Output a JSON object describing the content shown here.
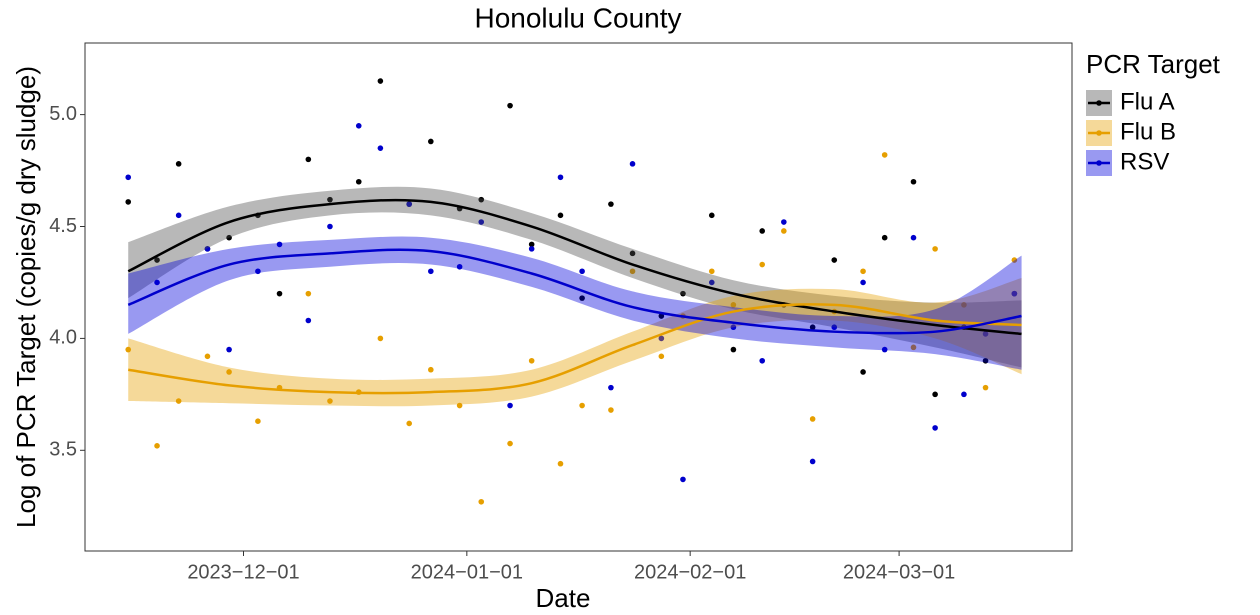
{
  "chart_data": {
    "type": "scatter",
    "title": "Honolulu County",
    "x_label": "Date",
    "y_label": "Log of PCR Target (copies/g dry sludge)",
    "legend_title": "PCR Target",
    "legend_position": "right",
    "grid": false,
    "xlim": [
      "2023-11-09",
      "2024-03-25"
    ],
    "xticks": [
      {
        "value": "2023-12-01",
        "label": "2023−12−01"
      },
      {
        "value": "2024-01-01",
        "label": "2024−01−01"
      },
      {
        "value": "2024-02-01",
        "label": "2024−02−01"
      },
      {
        "value": "2024-03-01",
        "label": "2024−03−01"
      }
    ],
    "ylim": [
      3.05,
      5.32
    ],
    "yticks": [
      3.5,
      {
        "value": 4,
        "label": "4.0"
      },
      4.5,
      {
        "value": 5,
        "label": "5.0"
      }
    ],
    "x": [
      "2023-11-15",
      "2023-11-19",
      "2023-11-22",
      "2023-11-26",
      "2023-11-29",
      "2023-12-03",
      "2023-12-06",
      "2023-12-10",
      "2023-12-13",
      "2023-12-17",
      "2023-12-20",
      "2023-12-24",
      "2023-12-27",
      "2023-12-31",
      "2024-01-03",
      "2024-01-07",
      "2024-01-10",
      "2024-01-14",
      "2024-01-17",
      "2024-01-21",
      "2024-01-24",
      "2024-01-28",
      "2024-01-31",
      "2024-02-04",
      "2024-02-07",
      "2024-02-11",
      "2024-02-14",
      "2024-02-18",
      "2024-02-21",
      "2024-02-25",
      "2024-02-28",
      "2024-03-03",
      "2024-03-06",
      "2024-03-10",
      "2024-03-13",
      "2024-03-17"
    ],
    "series": [
      {
        "name": "Flu A",
        "color": "#000000",
        "band_color": "#4d4d4d",
        "values": [
          4.61,
          4.35,
          4.78,
          4.4,
          4.45,
          4.55,
          4.2,
          4.8,
          4.62,
          4.7,
          5.15,
          4.6,
          4.88,
          4.58,
          4.62,
          5.04,
          4.42,
          4.55,
          4.18,
          4.6,
          4.38,
          4.1,
          4.2,
          4.55,
          3.95,
          4.48,
          4.15,
          4.05,
          4.35,
          3.85,
          4.45,
          4.7,
          3.75,
          4.05,
          3.9,
          4.2
        ],
        "smooth": {
          "x": [
            "2023-11-15",
            "2023-11-29",
            "2023-12-13",
            "2023-12-27",
            "2024-01-10",
            "2024-01-24",
            "2024-02-07",
            "2024-02-21",
            "2024-03-06",
            "2024-03-18"
          ],
          "fit": [
            4.3,
            4.52,
            4.6,
            4.61,
            4.5,
            4.33,
            4.2,
            4.12,
            4.06,
            4.02
          ],
          "lower": [
            4.18,
            4.45,
            4.55,
            4.55,
            4.44,
            4.27,
            4.13,
            4.05,
            3.96,
            3.87
          ],
          "upper": [
            4.43,
            4.59,
            4.66,
            4.67,
            4.56,
            4.4,
            4.26,
            4.19,
            4.16,
            4.17
          ]
        }
      },
      {
        "name": "Flu B",
        "color": "#e69f00",
        "band_color": "#e69f00",
        "values": [
          3.95,
          3.52,
          3.72,
          3.92,
          3.85,
          3.63,
          3.78,
          4.2,
          3.72,
          3.76,
          4.0,
          3.62,
          3.86,
          3.7,
          3.27,
          3.53,
          3.9,
          3.44,
          3.7,
          3.68,
          4.3,
          3.92,
          4.1,
          4.3,
          4.15,
          4.33,
          4.48,
          3.64,
          4.12,
          4.3,
          4.82,
          3.96,
          4.4,
          4.15,
          3.78,
          4.35
        ],
        "smooth": {
          "x": [
            "2023-11-15",
            "2023-11-29",
            "2023-12-13",
            "2023-12-27",
            "2024-01-10",
            "2024-01-24",
            "2024-02-07",
            "2024-02-21",
            "2024-03-06",
            "2024-03-18"
          ],
          "fit": [
            3.86,
            3.79,
            3.76,
            3.76,
            3.8,
            3.97,
            4.12,
            4.15,
            4.08,
            4.06
          ],
          "lower": [
            3.72,
            3.71,
            3.7,
            3.7,
            3.74,
            3.9,
            4.05,
            4.08,
            4.0,
            3.84
          ],
          "upper": [
            4.0,
            3.87,
            3.82,
            3.82,
            3.86,
            4.03,
            4.19,
            4.22,
            4.16,
            4.27
          ]
        }
      },
      {
        "name": "RSV",
        "color": "#0000cc",
        "band_color": "#0000dd",
        "values": [
          4.72,
          4.25,
          4.55,
          4.4,
          3.95,
          4.3,
          4.42,
          4.08,
          4.5,
          4.95,
          4.85,
          4.6,
          4.3,
          4.32,
          4.52,
          3.7,
          4.4,
          4.72,
          4.3,
          3.78,
          4.78,
          4.0,
          3.37,
          4.25,
          4.05,
          3.9,
          4.52,
          3.45,
          4.05,
          4.25,
          3.95,
          4.45,
          3.6,
          3.75,
          4.02,
          4.2
        ],
        "smooth": {
          "x": [
            "2023-11-15",
            "2023-11-29",
            "2023-12-13",
            "2023-12-27",
            "2024-01-10",
            "2024-01-24",
            "2024-02-07",
            "2024-02-21",
            "2024-03-06",
            "2024-03-18"
          ],
          "fit": [
            4.15,
            4.33,
            4.38,
            4.39,
            4.29,
            4.14,
            4.07,
            4.03,
            4.03,
            4.1
          ],
          "lower": [
            4.02,
            4.26,
            4.32,
            4.33,
            4.23,
            4.08,
            4.0,
            3.96,
            3.93,
            3.86
          ],
          "upper": [
            4.29,
            4.4,
            4.44,
            4.45,
            4.36,
            4.21,
            4.14,
            4.1,
            4.13,
            4.37
          ]
        }
      }
    ]
  }
}
